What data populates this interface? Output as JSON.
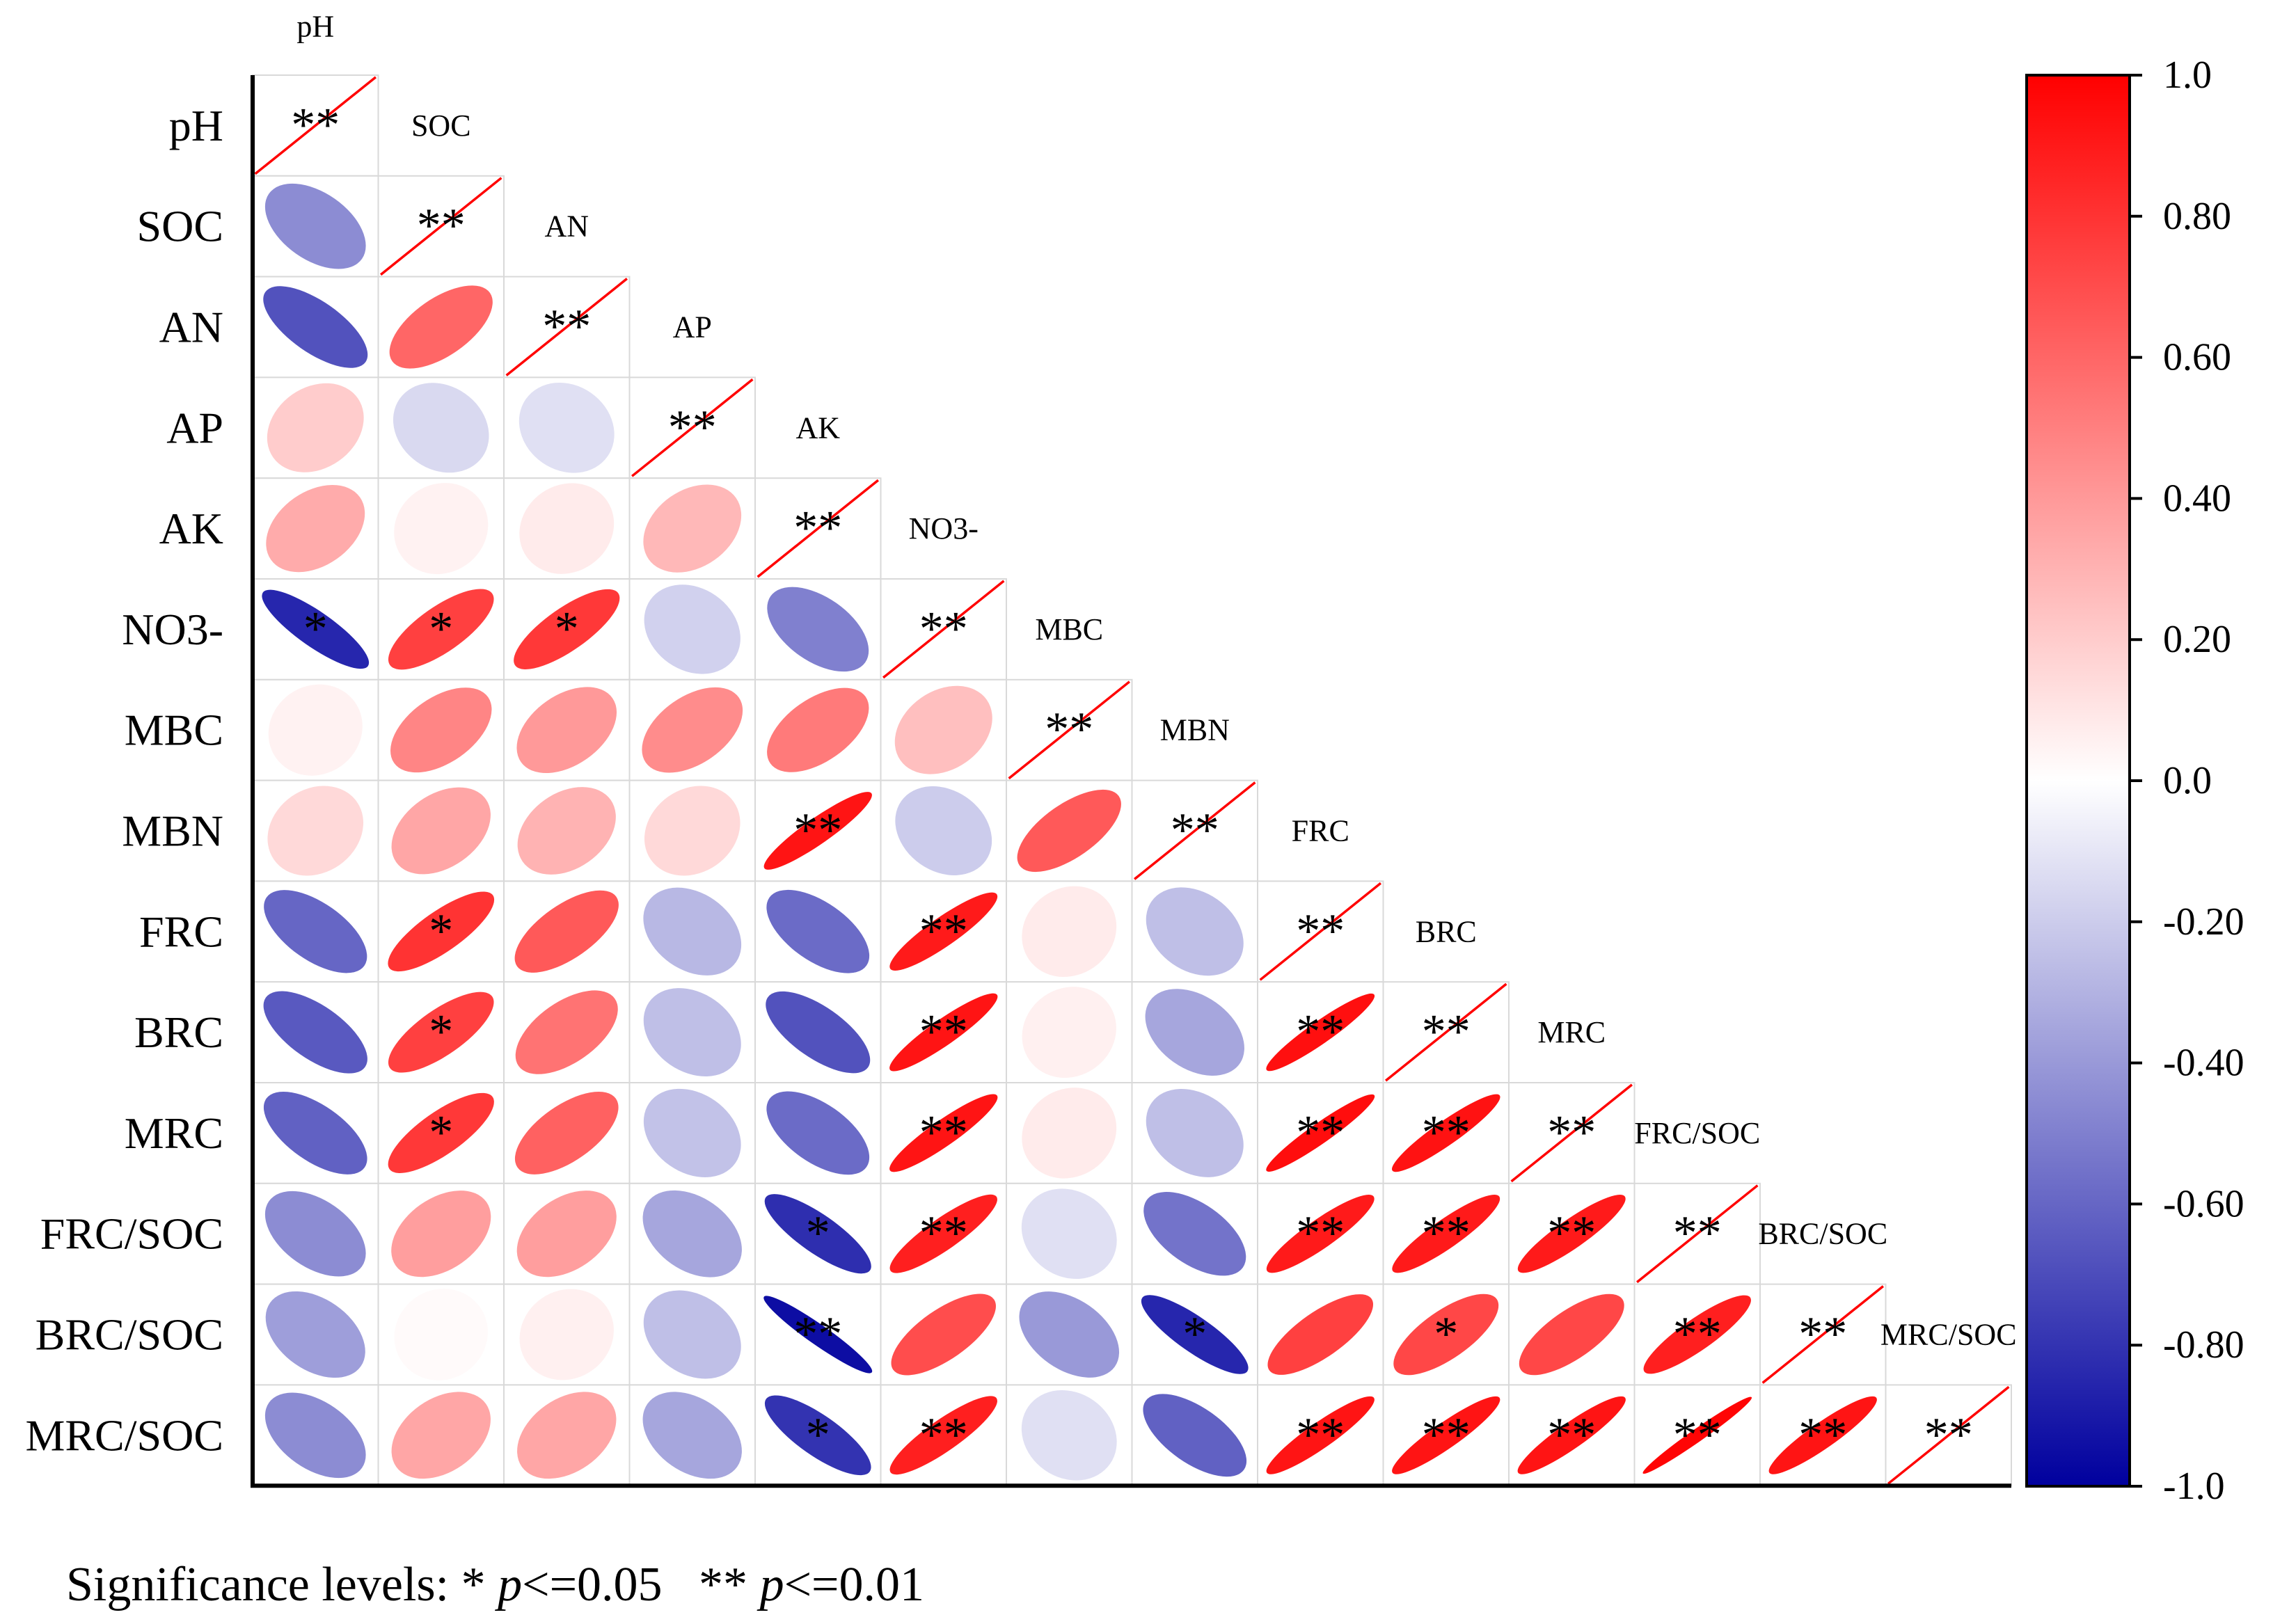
{
  "chart_data": {
    "type": "heatmap",
    "style": "ellipse-correlation-lower-triangle",
    "variables": [
      "pH",
      "SOC",
      "AN",
      "AP",
      "AK",
      "NO3-",
      "MBC",
      "MBN",
      "FRC",
      "BRC",
      "MRC",
      "FRC/SOC",
      "BRC/SOC",
      "MRC/SOC"
    ],
    "matrix": [
      [
        1.0
      ],
      [
        -0.45,
        1.0
      ],
      [
        -0.68,
        0.6,
        1.0
      ],
      [
        0.2,
        -0.15,
        -0.12,
        1.0
      ],
      [
        0.33,
        0.05,
        0.08,
        0.28,
        1.0
      ],
      [
        -0.85,
        0.75,
        0.78,
        -0.18,
        -0.5,
        1.0
      ],
      [
        0.05,
        0.48,
        0.4,
        0.45,
        0.52,
        0.25,
        1.0
      ],
      [
        0.15,
        0.35,
        0.3,
        0.15,
        0.92,
        -0.2,
        0.65,
        1.0
      ],
      [
        -0.6,
        0.8,
        0.65,
        -0.28,
        -0.58,
        0.9,
        0.08,
        -0.25,
        1.0
      ],
      [
        -0.65,
        0.75,
        0.55,
        -0.25,
        -0.68,
        0.92,
        0.06,
        -0.35,
        0.94,
        1.0
      ],
      [
        -0.62,
        0.78,
        0.62,
        -0.24,
        -0.58,
        0.92,
        0.08,
        -0.25,
        0.95,
        0.93,
        1.0
      ],
      [
        -0.45,
        0.38,
        0.38,
        -0.35,
        -0.82,
        0.88,
        -0.12,
        -0.55,
        0.9,
        0.9,
        0.9,
        1.0
      ],
      [
        -0.38,
        0.02,
        0.06,
        -0.25,
        -0.95,
        0.7,
        -0.4,
        -0.85,
        0.75,
        0.72,
        0.72,
        0.88,
        1.0
      ],
      [
        -0.45,
        0.35,
        0.35,
        -0.35,
        -0.8,
        0.88,
        -0.12,
        -0.62,
        0.92,
        0.92,
        0.92,
        0.98,
        0.92,
        1.0
      ]
    ],
    "significance": [
      [
        "**"
      ],
      [
        "",
        "**"
      ],
      [
        "",
        "",
        "**"
      ],
      [
        "",
        "",
        "",
        "**"
      ],
      [
        "",
        "",
        "",
        "",
        "**"
      ],
      [
        "*",
        "*",
        "*",
        "",
        "",
        "**"
      ],
      [
        "",
        "",
        "",
        "",
        "",
        "",
        "**"
      ],
      [
        "",
        "",
        "",
        "",
        "**",
        "",
        "",
        "**"
      ],
      [
        "",
        "*",
        "",
        "",
        "",
        "**",
        "",
        "",
        "**"
      ],
      [
        "",
        "*",
        "",
        "",
        "",
        "**",
        "",
        "",
        "**",
        "**"
      ],
      [
        "",
        "*",
        "",
        "",
        "",
        "**",
        "",
        "",
        "**",
        "**",
        "**"
      ],
      [
        "",
        "",
        "",
        "",
        "*",
        "**",
        "",
        "",
        "**",
        "**",
        "**",
        "**"
      ],
      [
        "",
        "",
        "",
        "",
        "**",
        "",
        "",
        "*",
        "",
        "*",
        "",
        "**",
        "**"
      ],
      [
        "",
        "",
        "",
        "",
        "*",
        "**",
        "",
        "",
        "**",
        "**",
        "**",
        "**",
        "**",
        "**"
      ]
    ],
    "colorbar": {
      "min": -1.0,
      "max": 1.0,
      "ticks": [
        "1.0",
        "0.80",
        "0.60",
        "0.40",
        "0.20",
        "0.0",
        "-0.20",
        "-0.40",
        "-0.60",
        "-0.80",
        "-1.0"
      ],
      "colors": {
        "negative": "#00009e",
        "zero": "#ffffff",
        "positive": "#ff0000"
      }
    },
    "footer": {
      "prefix": "Significance levels: * ",
      "p_symbol": "p",
      "first_threshold": "<=0.05   ** ",
      "second_threshold": "<=0.01"
    },
    "diagonal_line_color": "#ff0000"
  }
}
